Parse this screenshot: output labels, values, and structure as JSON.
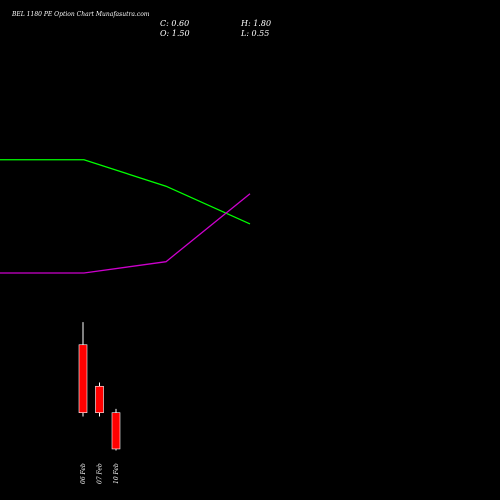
{
  "chart_data": {
    "type": "candlestick",
    "title": "BEL 1180 PE Option Chart Munafasutra.com",
    "ohlc_readout": {
      "close": "C: 0.60",
      "high": "H: 1.80",
      "open": "O: 1.50",
      "low": "L: 0.55"
    },
    "x_labels": [
      "06 Feb",
      "07 Feb",
      "10 Feb"
    ],
    "candles": [
      {
        "date": "06 Feb",
        "open": 1.5,
        "high": 1.8,
        "low": 0.55,
        "close": 0.6,
        "color": "#ff0000"
      },
      {
        "date": "07 Feb",
        "open": 0.95,
        "high": 1.0,
        "low": 0.55,
        "close": 0.6,
        "color": "#ff0000"
      },
      {
        "date": "10 Feb",
        "open": 0.6,
        "high": 0.65,
        "low": 0.1,
        "close": 0.12,
        "color": "#ff0000"
      }
    ],
    "lines": [
      {
        "color": "#00ff00",
        "points": [
          [
            -0.5,
            3.95
          ],
          [
            1.0,
            3.95
          ],
          [
            2.0,
            3.6
          ],
          [
            3.0,
            3.1
          ]
        ]
      },
      {
        "color": "#cc00cc",
        "points": [
          [
            -0.5,
            2.45
          ],
          [
            1.0,
            2.45
          ],
          [
            2.0,
            2.6
          ],
          [
            3.0,
            3.5
          ]
        ]
      }
    ],
    "ylim": [
      0,
      4.5
    ],
    "grid": false,
    "colors": {
      "background": "#000000",
      "down": "#ff0000",
      "wick": "#ffffff"
    }
  }
}
